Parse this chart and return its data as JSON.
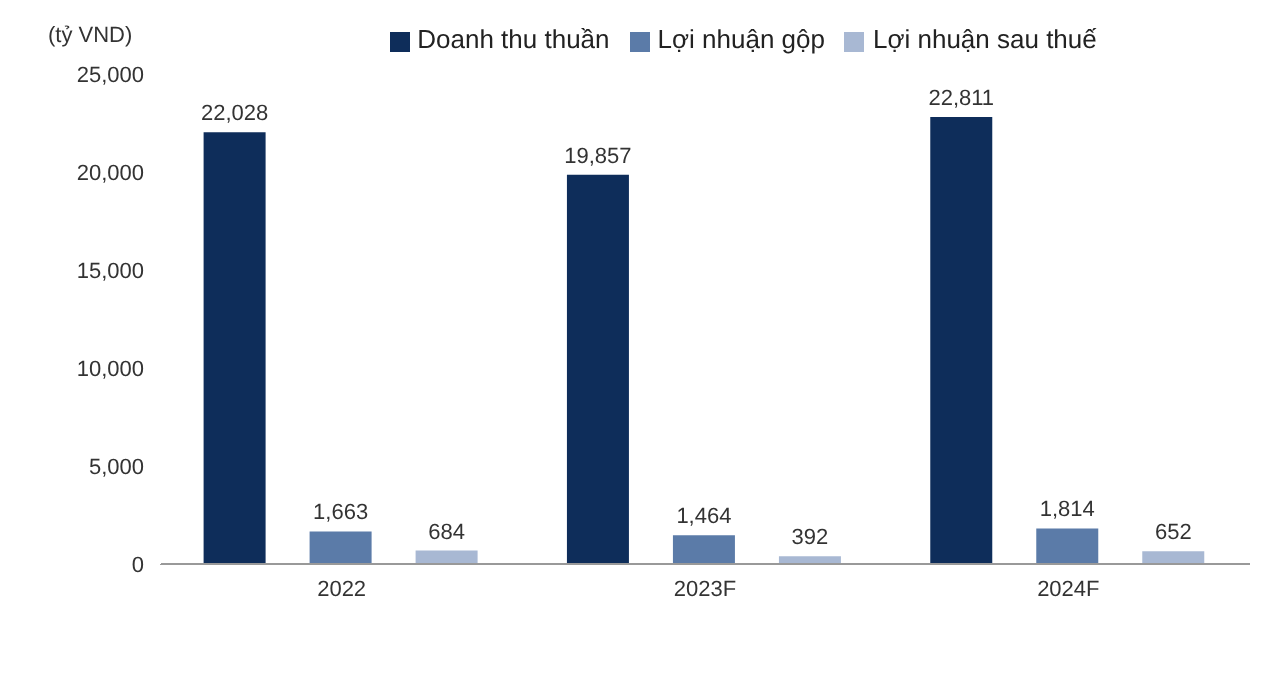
{
  "chart_data": {
    "type": "bar",
    "ylabel": "(tỷ VND)",
    "categories": [
      "2022",
      "2023F",
      "2024F"
    ],
    "series": [
      {
        "name": "Doanh thu thuần",
        "color": "#0e2d5a",
        "values": [
          22028,
          19857,
          22811
        ],
        "value_labels": [
          "22,028",
          "19,857",
          "22,811"
        ]
      },
      {
        "name": "Lợi nhuận gộp",
        "color": "#5b7ba8",
        "values": [
          1663,
          1464,
          1814
        ],
        "value_labels": [
          "1,663",
          "1,464",
          "1,814"
        ]
      },
      {
        "name": "Lợi nhuận sau thuế",
        "color": "#a8b8d3",
        "values": [
          684,
          392,
          652
        ],
        "value_labels": [
          "684",
          "392",
          "652"
        ]
      }
    ],
    "ylim": [
      0,
      25000
    ],
    "yticks": [
      0,
      {
        "value": 5000,
        "label": "5,000"
      },
      {
        "value": 10000,
        "label": "10,000"
      },
      {
        "value": 15000,
        "label": "15,000"
      },
      {
        "value": 20000,
        "label": "20,000"
      },
      {
        "value": 25000,
        "label": "25,000"
      }
    ],
    "grid": false,
    "legend": "top"
  }
}
